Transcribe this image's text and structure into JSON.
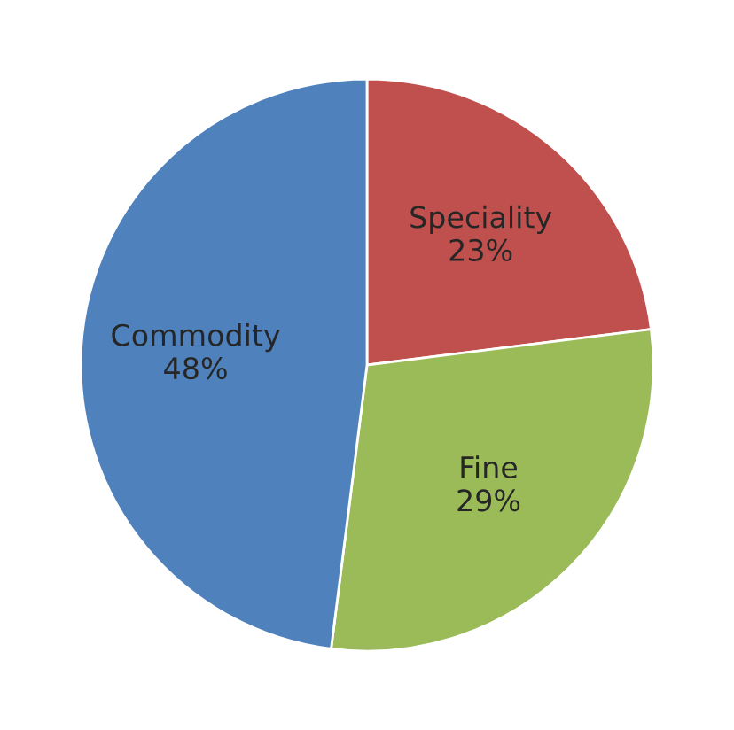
{
  "chart_data": {
    "type": "pie",
    "categories": [
      "Speciality",
      "Fine",
      "Commodity"
    ],
    "values": [
      23,
      29,
      48
    ],
    "colors": [
      "#c0504d",
      "#9bbb59",
      "#4f81bd"
    ],
    "value_labels": [
      "23%",
      "29%",
      "48%"
    ]
  }
}
